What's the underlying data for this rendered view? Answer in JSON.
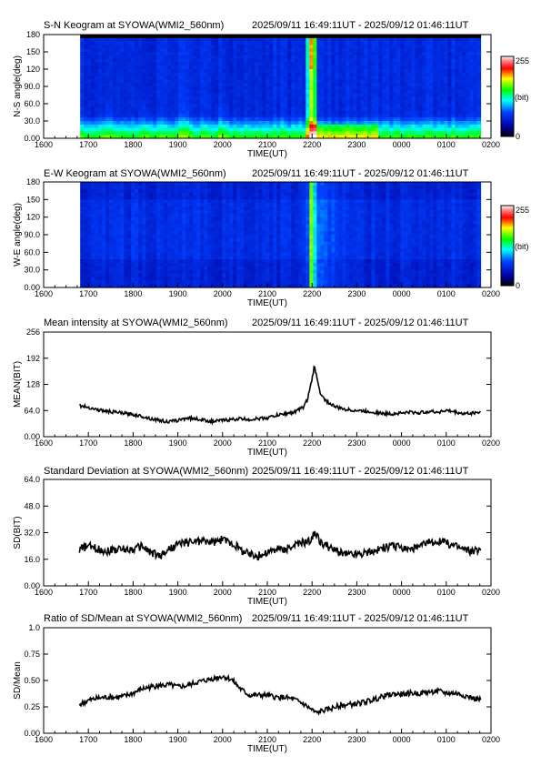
{
  "time_range": "2025/09/11 16:49:11UT - 2025/09/12 01:46:11UT",
  "x_ticks": [
    "1600",
    "1700",
    "1800",
    "1900",
    "2000",
    "2100",
    "2200",
    "2300",
    "0000",
    "0100",
    "0200"
  ],
  "x_label": "TIME(UT)",
  "colors": {
    "line": "#000000",
    "frame": "#000000",
    "background": "#ffffff"
  },
  "chart_data": [
    {
      "type": "heatmap",
      "title": "S-N Keogram at SYOWA(WMI2_560nm)",
      "subtitle": "2025/09/11 16:49:11UT - 2025/09/12 01:46:11UT",
      "xlabel": "TIME(UT)",
      "ylabel": "N-S angle(deg)",
      "y_ticks": [
        "0.00",
        "30.0",
        "60.0",
        "90.0",
        "120",
        "150",
        "180"
      ],
      "ylim": [
        0,
        180
      ],
      "x_data_range": [
        "16:49",
        "01:46"
      ],
      "colorbar": {
        "min_label": "0",
        "max_label": "255",
        "unit": "(bit)"
      },
      "features": {
        "black_band_above_deg": 170,
        "bright_column_time": "22:00",
        "bright_floor_low_angles": true
      }
    },
    {
      "type": "heatmap",
      "title": "E-W Keogram at SYOWA(WMI2_560nm)",
      "subtitle": "2025/09/11 16:49:11UT - 2025/09/12 01:46:11UT",
      "xlabel": "TIME(UT)",
      "ylabel": "W-E angle(deg)",
      "y_ticks": [
        "0.00",
        "30.0",
        "60.0",
        "90.0",
        "120",
        "150",
        "180"
      ],
      "ylim": [
        0,
        180
      ],
      "x_data_range": [
        "16:49",
        "01:46"
      ],
      "colorbar": {
        "min_label": "0",
        "max_label": "255",
        "unit": "(bit)"
      },
      "features": {
        "bright_column_time": "22:00"
      }
    },
    {
      "type": "line",
      "title": "Mean intensity at SYOWA(WMI2_560nm)",
      "subtitle": "2025/09/11 16:49:11UT - 2025/09/12 01:46:11UT",
      "xlabel": "TIME(UT)",
      "ylabel": "MEAN(BIT)",
      "y_ticks": [
        "0.00",
        "64.0",
        "128",
        "192",
        "256"
      ],
      "ylim": [
        0,
        256
      ],
      "x_hours": [
        16.8,
        17.0,
        17.2,
        17.4,
        17.6,
        17.8,
        18.0,
        18.2,
        18.4,
        18.6,
        18.8,
        19.0,
        19.2,
        19.4,
        19.6,
        19.8,
        20.0,
        20.2,
        20.4,
        20.6,
        20.8,
        21.0,
        21.2,
        21.4,
        21.6,
        21.8,
        21.9,
        22.0,
        22.05,
        22.1,
        22.2,
        22.4,
        22.6,
        22.8,
        23.0,
        23.2,
        23.4,
        23.6,
        23.8,
        24.0,
        24.2,
        24.4,
        24.6,
        24.8,
        25.0,
        25.2,
        25.4,
        25.6,
        25.77
      ],
      "values": [
        76,
        72,
        66,
        62,
        60,
        57,
        54,
        50,
        44,
        40,
        36,
        40,
        46,
        44,
        40,
        37,
        40,
        42,
        44,
        42,
        44,
        46,
        52,
        56,
        60,
        72,
        92,
        140,
        172,
        150,
        100,
        80,
        70,
        66,
        64,
        62,
        60,
        56,
        56,
        58,
        60,
        58,
        62,
        60,
        64,
        60,
        56,
        58,
        60
      ],
      "noise": 4
    },
    {
      "type": "line",
      "title": "Standard Deviation at SYOWA(WMI2_560nm)",
      "subtitle": "2025/09/11 16:49:11UT - 2025/09/12 01:46:11UT",
      "xlabel": "TIME(UT)",
      "ylabel": "SD(BIT)",
      "y_ticks": [
        "0.00",
        "16.0",
        "32.0",
        "48.0",
        "64.0"
      ],
      "ylim": [
        0,
        64
      ],
      "x_hours": [
        16.8,
        17.0,
        17.2,
        17.4,
        17.6,
        17.8,
        18.0,
        18.2,
        18.4,
        18.6,
        18.8,
        19.0,
        19.2,
        19.4,
        19.6,
        19.8,
        20.0,
        20.2,
        20.4,
        20.6,
        20.8,
        21.0,
        21.2,
        21.4,
        21.6,
        21.8,
        22.0,
        22.05,
        22.2,
        22.4,
        22.6,
        22.8,
        23.0,
        23.2,
        23.4,
        23.6,
        23.8,
        24.0,
        24.2,
        24.4,
        24.6,
        24.8,
        25.0,
        25.2,
        25.4,
        25.6,
        25.77
      ],
      "values": [
        22,
        24,
        22,
        21,
        22,
        22,
        22,
        24,
        20,
        18,
        22,
        25,
        26,
        27,
        27,
        26,
        28,
        26,
        22,
        19,
        18,
        20,
        22,
        22,
        24,
        26,
        28,
        32,
        26,
        23,
        20,
        19,
        19,
        20,
        21,
        23,
        24,
        23,
        22,
        23,
        26,
        27,
        26,
        24,
        22,
        21,
        21
      ],
      "noise": 2.5
    },
    {
      "type": "line",
      "title": "Ratio of SD/Mean at SYOWA(WMI2_560nm)",
      "subtitle": "2025/09/11 16:49:11UT - 2025/09/12 01:46:11UT",
      "xlabel": "TIME(UT)",
      "ylabel": "SD/Mean",
      "y_ticks": [
        "0.00",
        "0.25",
        "0.50",
        "0.75",
        "1.0"
      ],
      "ylim": [
        0,
        1.0
      ],
      "x_hours": [
        16.8,
        17.0,
        17.2,
        17.4,
        17.6,
        17.8,
        18.0,
        18.2,
        18.4,
        18.6,
        18.8,
        19.0,
        19.2,
        19.4,
        19.6,
        19.8,
        20.0,
        20.2,
        20.4,
        20.6,
        20.8,
        21.0,
        21.2,
        21.4,
        21.6,
        21.8,
        22.0,
        22.1,
        22.2,
        22.4,
        22.6,
        22.8,
        23.0,
        23.2,
        23.4,
        23.6,
        23.8,
        24.0,
        24.2,
        24.4,
        24.6,
        24.8,
        25.0,
        25.2,
        25.4,
        25.6,
        25.77
      ],
      "values": [
        0.27,
        0.31,
        0.33,
        0.34,
        0.34,
        0.35,
        0.38,
        0.42,
        0.44,
        0.45,
        0.46,
        0.44,
        0.45,
        0.48,
        0.5,
        0.52,
        0.54,
        0.51,
        0.42,
        0.36,
        0.36,
        0.36,
        0.34,
        0.34,
        0.32,
        0.28,
        0.22,
        0.19,
        0.21,
        0.23,
        0.26,
        0.27,
        0.28,
        0.3,
        0.32,
        0.35,
        0.37,
        0.37,
        0.38,
        0.38,
        0.39,
        0.4,
        0.38,
        0.38,
        0.36,
        0.33,
        0.32
      ],
      "noise": 0.025
    }
  ]
}
